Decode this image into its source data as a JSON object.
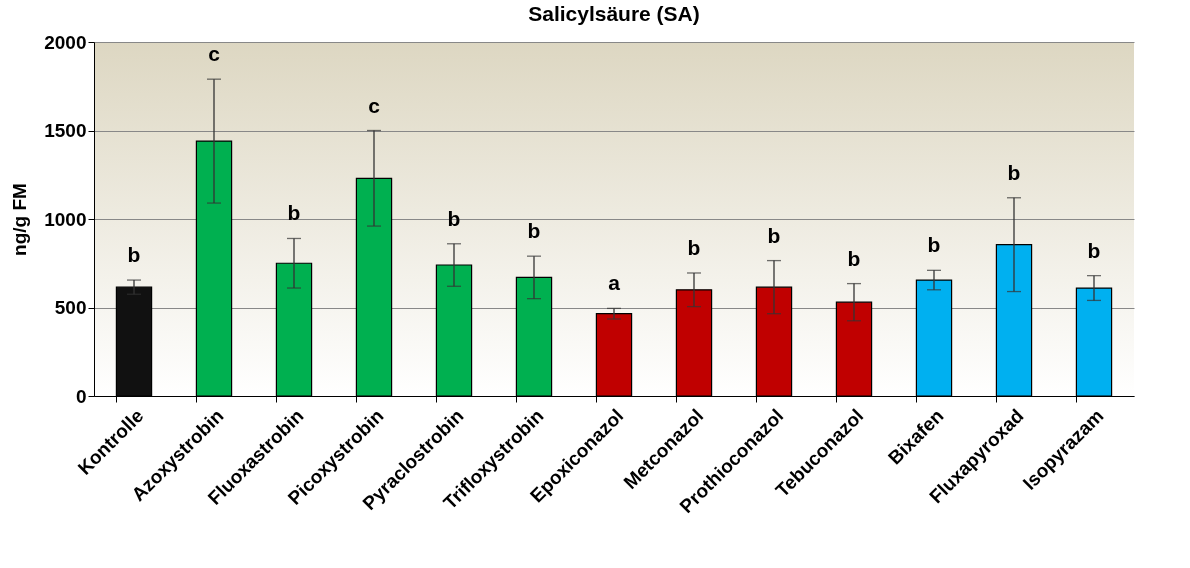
{
  "chart_data": {
    "type": "bar",
    "title": "Salicylsäure (SA)",
    "ylabel": "ng/g FM",
    "categories": [
      "Kontrolle",
      "Azoxystrobin",
      "Fluoxastrobin",
      "Picoxystrobin",
      "Pyraclostrobin",
      "Trifloxystrobin",
      "Epoxiconazol",
      "Metconazol",
      "Prothioconazol",
      "Tebuconazol",
      "Bixafen",
      "Fluxapyroxad",
      "Isopyrazam"
    ],
    "values": [
      615,
      1440,
      750,
      1230,
      740,
      670,
      465,
      600,
      615,
      530,
      655,
      855,
      610
    ],
    "errors": [
      40,
      350,
      140,
      270,
      120,
      120,
      30,
      95,
      150,
      105,
      55,
      265,
      70
    ],
    "colors": [
      "#111111",
      "#00b050",
      "#00b050",
      "#00b050",
      "#00b050",
      "#00b050",
      "#c00000",
      "#c00000",
      "#c00000",
      "#c00000",
      "#00b0f0",
      "#00b0f0",
      "#00b0f0"
    ],
    "ylim": [
      0,
      2000
    ],
    "yticks": [
      0,
      500,
      1000,
      1500,
      2000
    ],
    "grid": "y",
    "annotations": [
      {
        "text": "b",
        "x": "Kontrolle",
        "y": 655
      },
      {
        "text": "c",
        "x": "Azoxystrobin",
        "y": 1790
      },
      {
        "text": "b",
        "x": "Fluoxastrobin",
        "y": 890
      },
      {
        "text": "c",
        "x": "Picoxystrobin",
        "y": 1500
      },
      {
        "text": "b",
        "x": "Pyraclostrobin",
        "y": 860
      },
      {
        "text": "b",
        "x": "Trifloxystrobin",
        "y": 790
      },
      {
        "text": "a",
        "x": "Epoxiconazol",
        "y": 495
      },
      {
        "text": "b",
        "x": "Metconazol",
        "y": 695
      },
      {
        "text": "b",
        "x": "Prothioconazol",
        "y": 765
      },
      {
        "text": "b",
        "x": "Tebuconazol",
        "y": 635
      },
      {
        "text": "b",
        "x": "Bixafen",
        "y": 710
      },
      {
        "text": "b",
        "x": "Fluxapyroxad",
        "y": 1120
      },
      {
        "text": "b",
        "x": "Isopyrazam",
        "y": 680
      }
    ]
  }
}
